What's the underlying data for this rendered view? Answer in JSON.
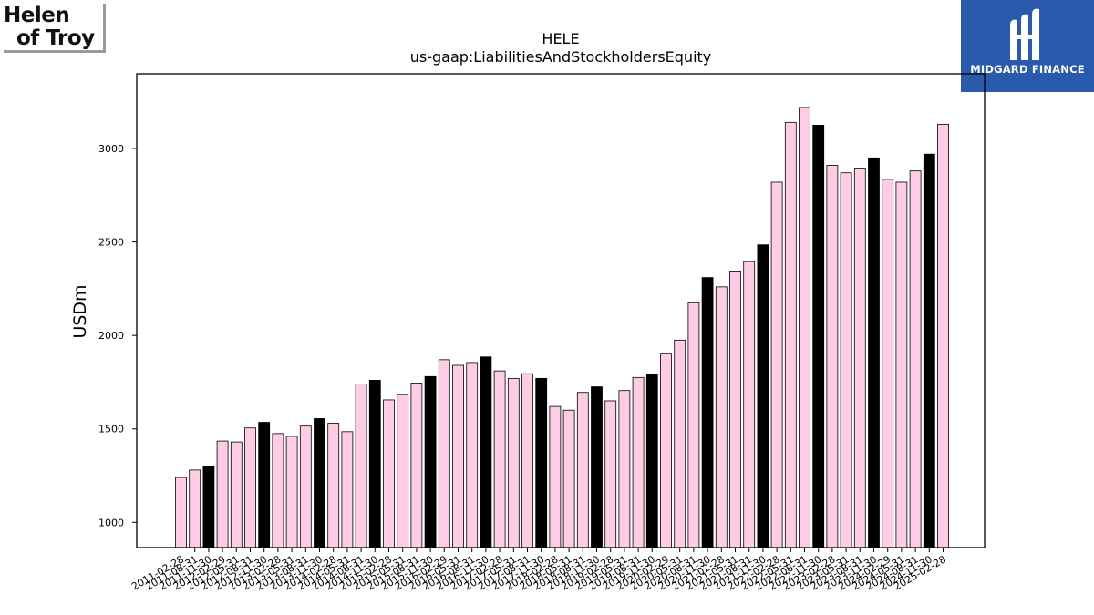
{
  "logo": {
    "line1": "Helen",
    "line2": "of Troy"
  },
  "brand": {
    "name": "MIDGARD FINANCE",
    "bg": "#2a5aab"
  },
  "colors": {
    "normal": "#ffcce6",
    "highlight": "#000000",
    "edge": "#000000"
  },
  "chart_data": {
    "type": "bar",
    "title": "HELE",
    "subtitle": "us-gaap:LiabilitiesAndStockholdersEquity",
    "xlabel": "",
    "ylabel": "USDm",
    "ylim": [
      865,
      3400
    ],
    "yticks": [
      1000,
      1500,
      2000,
      2500,
      3000
    ],
    "grid": false,
    "categories": [
      "2011-02-28",
      "2011-08-31",
      "2011-11-30",
      "2012-02-29",
      "2012-05-31",
      "2012-08-31",
      "2012-11-30",
      "2013-02-28",
      "2013-05-31",
      "2013-08-31",
      "2013-11-30",
      "2014-02-28",
      "2014-05-31",
      "2014-08-31",
      "2014-11-30",
      "2015-02-28",
      "2015-05-31",
      "2015-08-31",
      "2015-11-30",
      "2016-02-29",
      "2016-05-31",
      "2016-08-31",
      "2016-11-30",
      "2017-02-28",
      "2017-05-31",
      "2017-08-31",
      "2017-11-30",
      "2018-02-28",
      "2018-05-31",
      "2018-08-31",
      "2018-11-30",
      "2019-02-28",
      "2019-05-31",
      "2019-08-31",
      "2019-11-30",
      "2020-02-29",
      "2020-05-31",
      "2020-08-31",
      "2020-11-30",
      "2021-02-28",
      "2021-05-31",
      "2021-08-31",
      "2021-11-30",
      "2022-02-28",
      "2022-05-31",
      "2022-08-31",
      "2022-11-30",
      "2023-02-28",
      "2023-05-31",
      "2023-08-31",
      "2023-11-30",
      "2024-02-29",
      "2024-05-31",
      "2024-08-31",
      "2024-11-30",
      "2025-02-28"
    ],
    "values": [
      1240,
      1280,
      1300,
      1435,
      1430,
      1505,
      1535,
      1475,
      1460,
      1515,
      1555,
      1530,
      1485,
      1740,
      1760,
      1655,
      1685,
      1745,
      1780,
      1870,
      1840,
      1855,
      1885,
      1810,
      1770,
      1795,
      1770,
      1620,
      1600,
      1695,
      1725,
      1650,
      1705,
      1775,
      1790,
      1905,
      1975,
      2175,
      2310,
      2260,
      2345,
      2395,
      2485,
      2820,
      3140,
      3220,
      3125,
      2910,
      2870,
      2895,
      2950,
      2835,
      2820,
      2880,
      2970,
      3130
    ],
    "highlighted": [
      2,
      6,
      10,
      14,
      18,
      22,
      26,
      30,
      34,
      38,
      42,
      46,
      50,
      54
    ]
  }
}
